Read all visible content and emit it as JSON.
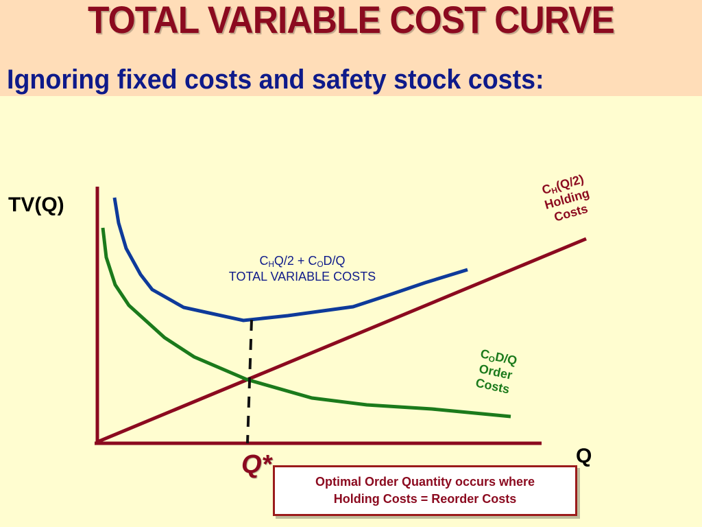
{
  "slide": {
    "title": "TOTAL VARIABLE COST CURVE",
    "subtitle": "Ignoring fixed costs and safety stock costs:"
  },
  "axes": {
    "y_label": "TV(Q)",
    "x_label": "Q",
    "optimum_label": "Q*"
  },
  "holding_curve": {
    "prefix": "C",
    "sub": "H",
    "formula_rest": "(Q/2)",
    "line2": "Holding",
    "line3": "Costs",
    "color": "#8B0A1F"
  },
  "order_curve": {
    "prefix": "C",
    "sub": "O",
    "formula_rest": "D/Q",
    "line2": "Order",
    "line3": "Costs",
    "color": "#1B7A1B"
  },
  "total_curve": {
    "part1": "C",
    "sub1": "H",
    "part2": "Q/2 + C",
    "sub2": "O",
    "part3": "D/Q",
    "line2": "TOTAL VARIABLE COSTS",
    "color": "#0E3A9A"
  },
  "note": {
    "line1": "Optimal Order Quantity occurs where",
    "line2": "Holding Costs = Reorder Costs"
  }
}
